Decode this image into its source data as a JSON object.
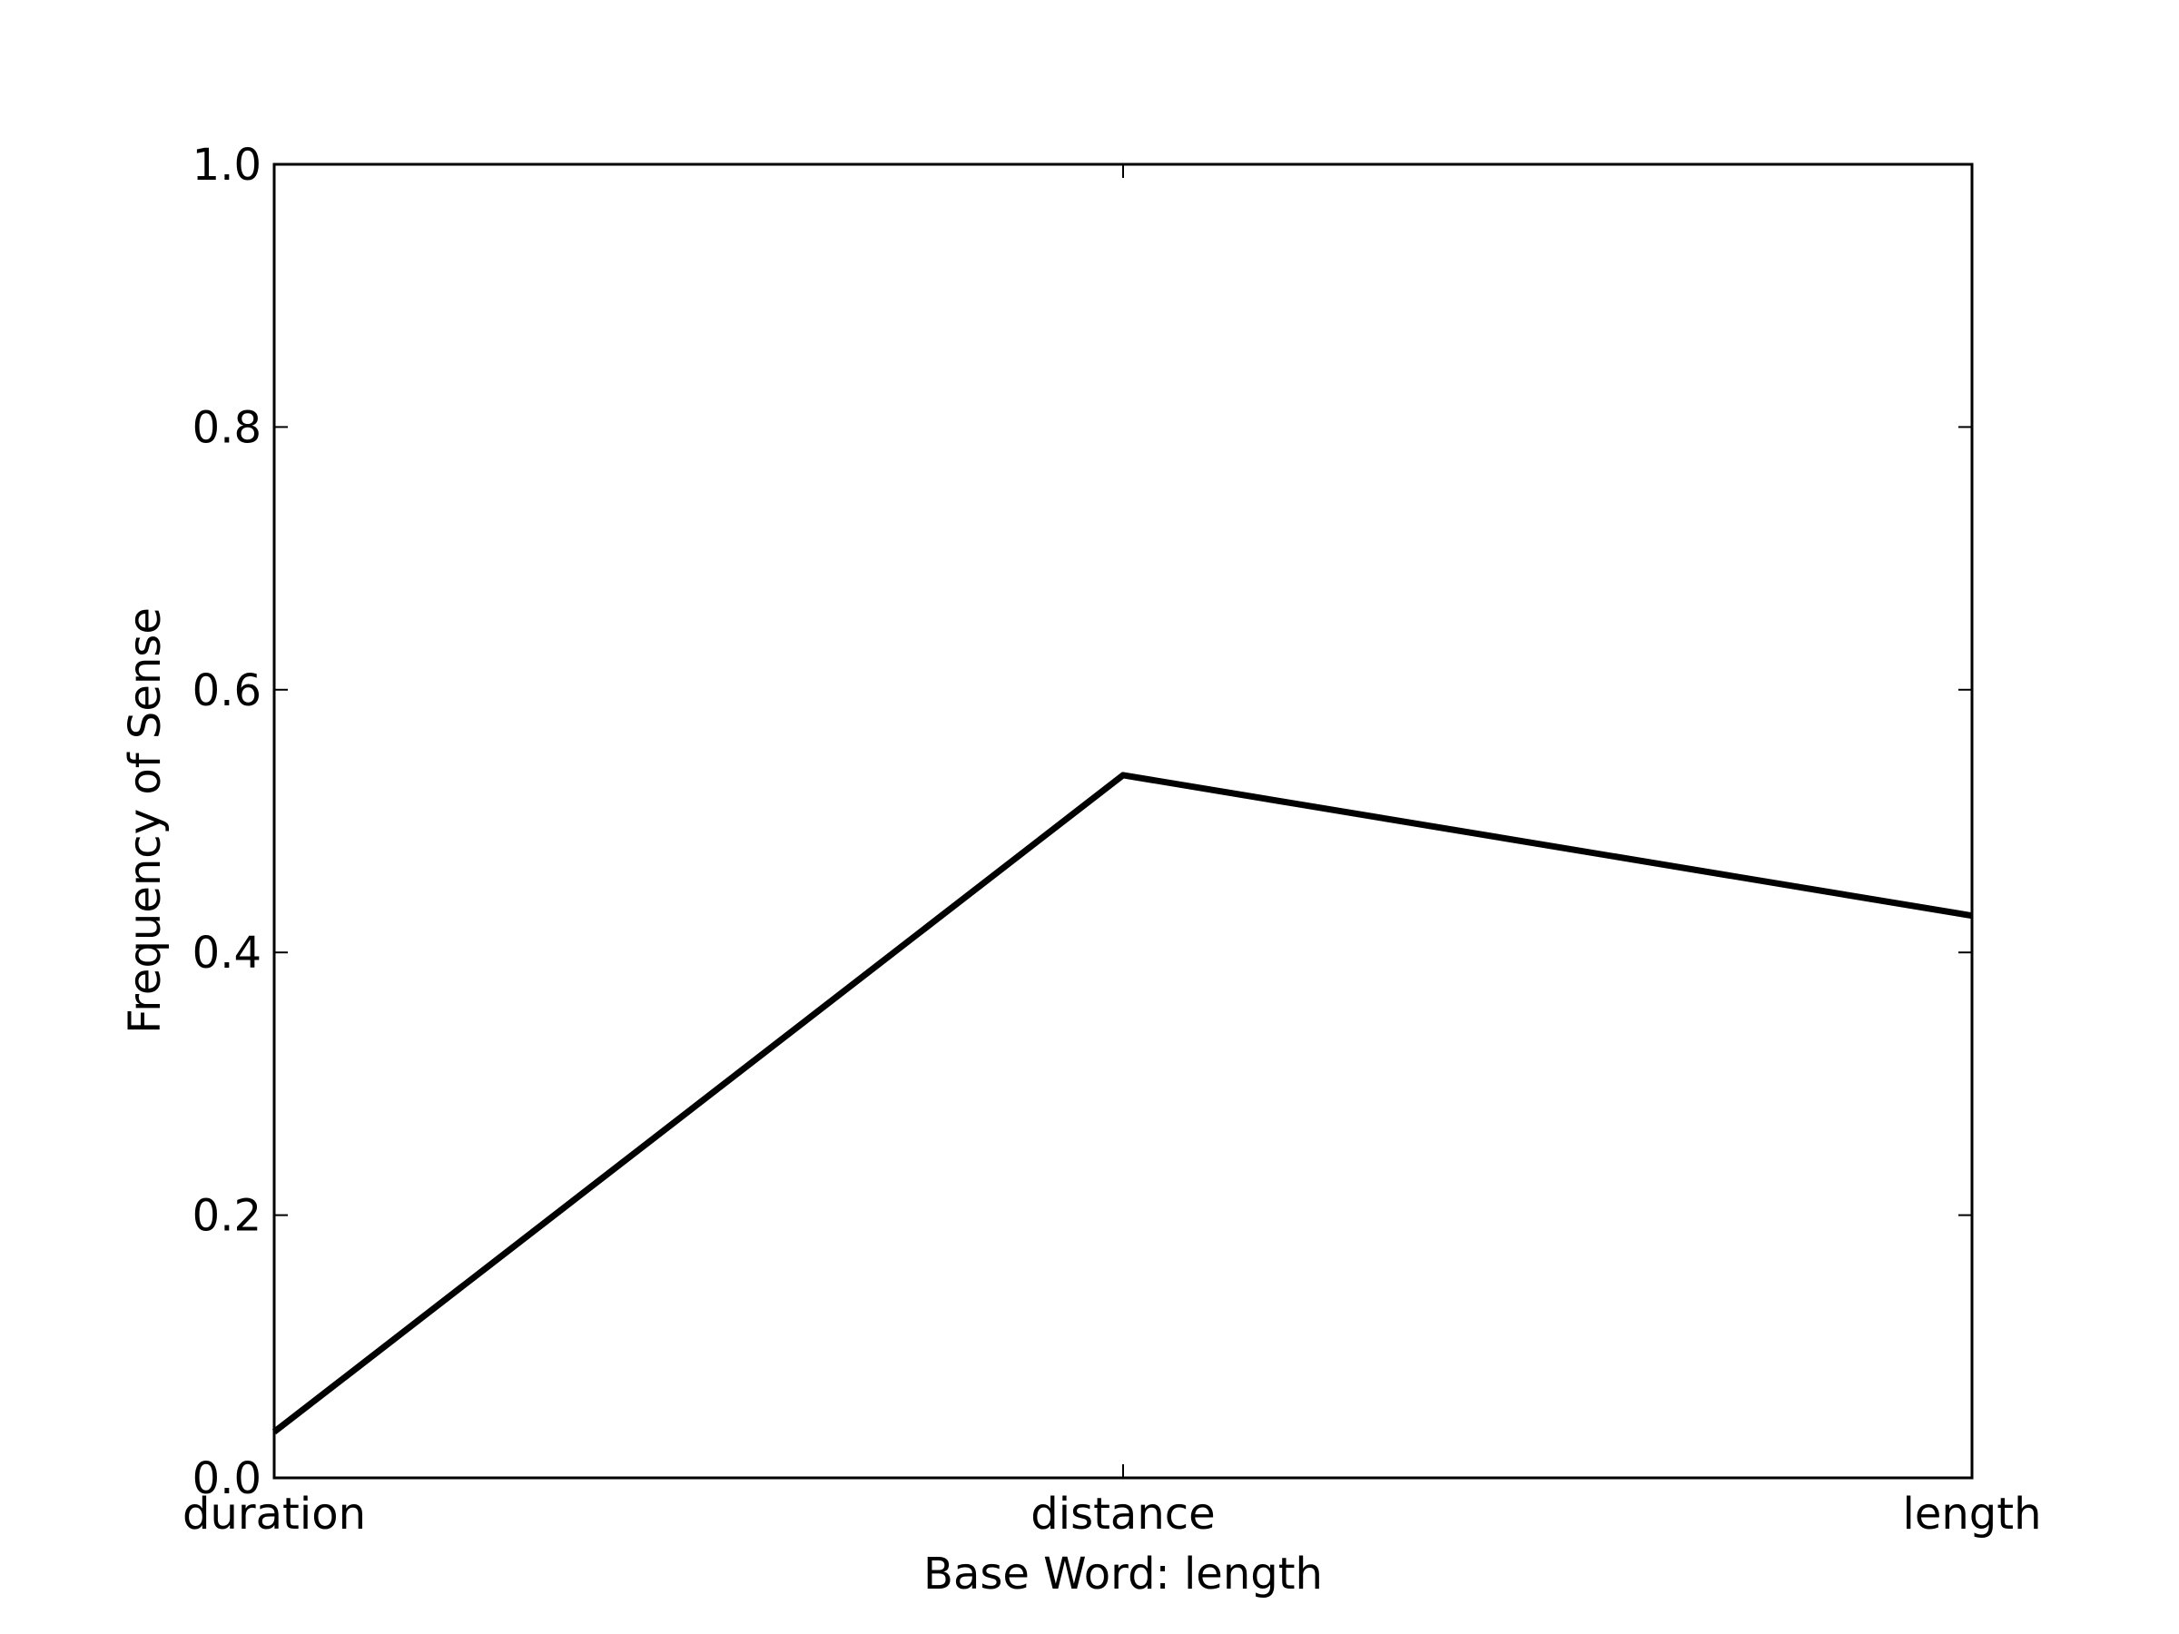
{
  "chart_data": {
    "type": "line",
    "title": "",
    "xlabel": "Base Word: length",
    "ylabel": "Frequency of Sense",
    "categories": [
      "duration",
      "distance",
      "length"
    ],
    "series": [
      {
        "values": [
          0.035,
          0.535,
          0.428
        ],
        "color": "#000000"
      }
    ],
    "ylim": [
      0.0,
      1.0
    ],
    "yticks": [
      "0.0",
      "0.2",
      "0.4",
      "0.6",
      "0.8",
      "1.0"
    ],
    "grid": false,
    "legend": "none"
  }
}
